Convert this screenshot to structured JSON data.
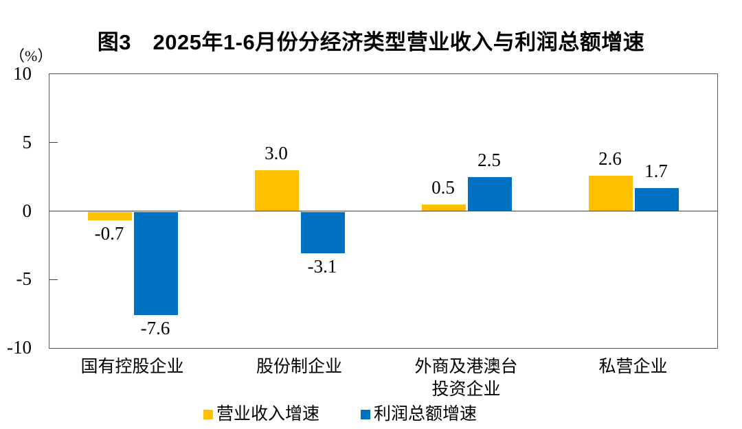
{
  "figure": {
    "title": "图3　2025年1-6月份分经济类型营业收入与利润总额增速",
    "unit_label": "（%）"
  },
  "chart_data": {
    "type": "bar",
    "title": "图3 2025年1-6月份分经济类型营业收入与利润总额增速",
    "categories": [
      "国有控股企业",
      "股份制企业",
      "外商及港澳台\n投资企业",
      "私营企业"
    ],
    "series": [
      {
        "name": "营业收入增速",
        "color": "#FFC000",
        "values": [
          -0.7,
          3.0,
          0.5,
          2.6
        ]
      },
      {
        "name": "利润总额增速",
        "color": "#0070C0",
        "values": [
          -7.6,
          -3.1,
          2.5,
          1.7
        ]
      }
    ],
    "value_labels": [
      [
        "-0.7",
        "3.0",
        "0.5",
        "2.6"
      ],
      [
        "-7.6",
        "-3.1",
        "2.5",
        "1.7"
      ]
    ],
    "ylabel": "（%）",
    "ylim": [
      -10,
      10
    ],
    "yticks": [
      10,
      5,
      0,
      -5,
      -10
    ],
    "grid": false,
    "legend_position": "bottom",
    "axis_color": "#595959",
    "zero_line_color": "#404040"
  }
}
